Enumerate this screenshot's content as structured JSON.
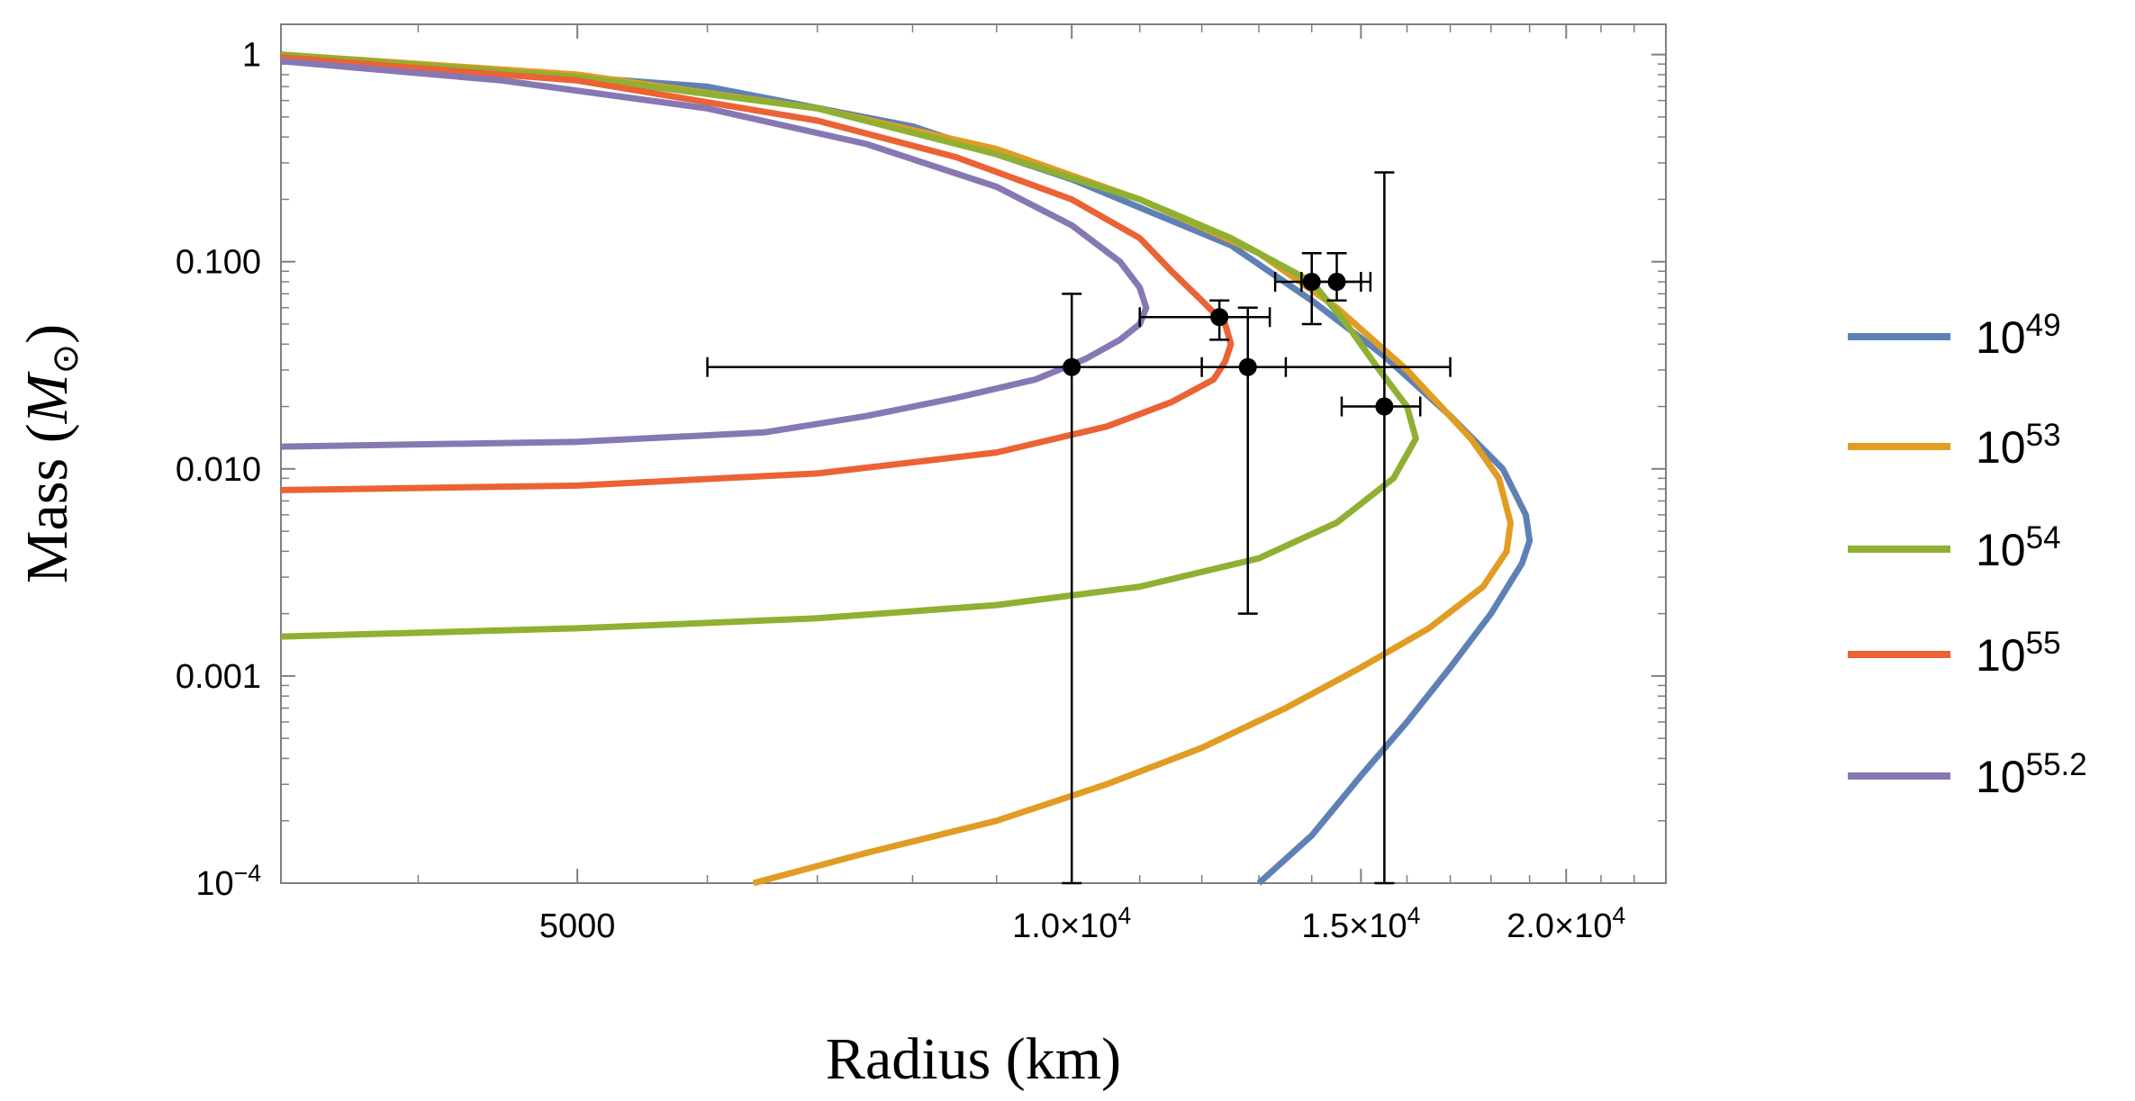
{
  "chart_data": {
    "type": "line",
    "title": "",
    "xlabel": "Radius (km)",
    "ylabel": "Mass (M☉)",
    "x_scale": "log",
    "y_scale": "log",
    "xlim": [
      3300,
      23000
    ],
    "ylim": [
      0.0001,
      1.4
    ],
    "x_ticks": [
      {
        "value": 5000,
        "label": "5000"
      },
      {
        "value": 10000,
        "label": "1.0×10",
        "exp": "4"
      },
      {
        "value": 15000,
        "label": "1.5×10",
        "exp": "4"
      },
      {
        "value": 20000,
        "label": "2.0×10",
        "exp": "4"
      }
    ],
    "y_ticks": [
      {
        "value": 1,
        "label": "1"
      },
      {
        "value": 0.1,
        "label": "0.100"
      },
      {
        "value": 0.01,
        "label": "0.010"
      },
      {
        "value": 0.001,
        "label": "0.001"
      },
      {
        "value": 0.0001,
        "label": "10",
        "exp": "−4"
      }
    ],
    "grid": false,
    "legend_position": "right",
    "series": [
      {
        "name": "10^49",
        "label_base": "10",
        "label_exp": "49",
        "color": "#5e81b5",
        "points": [
          [
            13000,
            0.0001
          ],
          [
            14000,
            0.00017
          ],
          [
            15000,
            0.00033
          ],
          [
            16000,
            0.0006
          ],
          [
            17000,
            0.0011
          ],
          [
            18000,
            0.002
          ],
          [
            18800,
            0.0035
          ],
          [
            19000,
            0.0045
          ],
          [
            18900,
            0.006
          ],
          [
            18300,
            0.01
          ],
          [
            17000,
            0.018
          ],
          [
            15500,
            0.035
          ],
          [
            14000,
            0.065
          ],
          [
            12500,
            0.12
          ],
          [
            10000,
            0.25
          ],
          [
            8000,
            0.45
          ],
          [
            6000,
            0.7
          ],
          [
            3300,
            1.0
          ]
        ]
      },
      {
        "name": "10^53",
        "label_base": "10",
        "label_exp": "53",
        "color": "#e19c24",
        "points": [
          [
            6400,
            0.0001
          ],
          [
            7500,
            0.00014
          ],
          [
            9000,
            0.0002
          ],
          [
            10500,
            0.0003
          ],
          [
            12000,
            0.00045
          ],
          [
            13500,
            0.0007
          ],
          [
            15000,
            0.0011
          ],
          [
            16500,
            0.0017
          ],
          [
            17800,
            0.0027
          ],
          [
            18400,
            0.004
          ],
          [
            18500,
            0.0055
          ],
          [
            18200,
            0.009
          ],
          [
            17500,
            0.014
          ],
          [
            16000,
            0.03
          ],
          [
            14500,
            0.06
          ],
          [
            13000,
            0.11
          ],
          [
            11000,
            0.2
          ],
          [
            9000,
            0.35
          ],
          [
            7000,
            0.55
          ],
          [
            5000,
            0.8
          ],
          [
            3300,
            1.0
          ]
        ]
      },
      {
        "name": "10^54",
        "label_base": "10",
        "label_exp": "54",
        "color": "#8fb032",
        "points": [
          [
            3300,
            0.00155
          ],
          [
            5000,
            0.0017
          ],
          [
            7000,
            0.0019
          ],
          [
            9000,
            0.0022
          ],
          [
            11000,
            0.0027
          ],
          [
            13000,
            0.0037
          ],
          [
            14500,
            0.0055
          ],
          [
            15700,
            0.009
          ],
          [
            16200,
            0.014
          ],
          [
            16000,
            0.02
          ],
          [
            15300,
            0.032
          ],
          [
            14700,
            0.05
          ],
          [
            14000,
            0.08
          ],
          [
            12500,
            0.13
          ],
          [
            11000,
            0.2
          ],
          [
            9000,
            0.33
          ],
          [
            7000,
            0.55
          ],
          [
            5000,
            0.78
          ],
          [
            3300,
            1.0
          ]
        ]
      },
      {
        "name": "10^55",
        "label_base": "10",
        "label_exp": "55",
        "color": "#eb6235",
        "points": [
          [
            3300,
            0.0079
          ],
          [
            5000,
            0.0083
          ],
          [
            7000,
            0.0095
          ],
          [
            9000,
            0.012
          ],
          [
            10500,
            0.016
          ],
          [
            11500,
            0.021
          ],
          [
            12200,
            0.027
          ],
          [
            12400,
            0.033
          ],
          [
            12500,
            0.04
          ],
          [
            12400,
            0.05
          ],
          [
            12000,
            0.065
          ],
          [
            11500,
            0.09
          ],
          [
            11000,
            0.13
          ],
          [
            10000,
            0.2
          ],
          [
            8500,
            0.32
          ],
          [
            7000,
            0.48
          ],
          [
            5000,
            0.75
          ],
          [
            3300,
            0.97
          ]
        ]
      },
      {
        "name": "10^55.2",
        "label_base": "10",
        "label_exp": "55.2",
        "color": "#8778b3",
        "points": [
          [
            3300,
            0.0128
          ],
          [
            5000,
            0.0135
          ],
          [
            6500,
            0.015
          ],
          [
            7500,
            0.018
          ],
          [
            8500,
            0.022
          ],
          [
            9500,
            0.027
          ],
          [
            10200,
            0.034
          ],
          [
            10700,
            0.042
          ],
          [
            11000,
            0.05
          ],
          [
            11100,
            0.06
          ],
          [
            11000,
            0.075
          ],
          [
            10700,
            0.1
          ],
          [
            10000,
            0.15
          ],
          [
            9000,
            0.23
          ],
          [
            7500,
            0.37
          ],
          [
            6000,
            0.55
          ],
          [
            4500,
            0.75
          ],
          [
            3300,
            0.93
          ]
        ]
      }
    ],
    "error_points": [
      {
        "x": 14000,
        "y": 0.08,
        "x_err": [
          13300,
          15000
        ],
        "y_err": [
          0.05,
          0.11
        ]
      },
      {
        "x": 14500,
        "y": 0.08,
        "x_err": [
          13800,
          15200
        ],
        "y_err": [
          0.065,
          0.11
        ]
      },
      {
        "x": 12300,
        "y": 0.054,
        "x_err": [
          11000,
          13200
        ],
        "y_err": [
          0.042,
          0.065
        ]
      },
      {
        "x": 12800,
        "y": 0.031,
        "x_err": [
          12000,
          13500
        ],
        "y_err": [
          0.002,
          0.06
        ]
      },
      {
        "x": 10000,
        "y": 0.031,
        "x_err": [
          6000,
          17000
        ],
        "y_err": [
          0.0001,
          0.07
        ]
      },
      {
        "x": 15500,
        "y": 0.02,
        "x_err": [
          14600,
          16300
        ],
        "y_err": [
          0.0001,
          0.27
        ]
      }
    ]
  }
}
